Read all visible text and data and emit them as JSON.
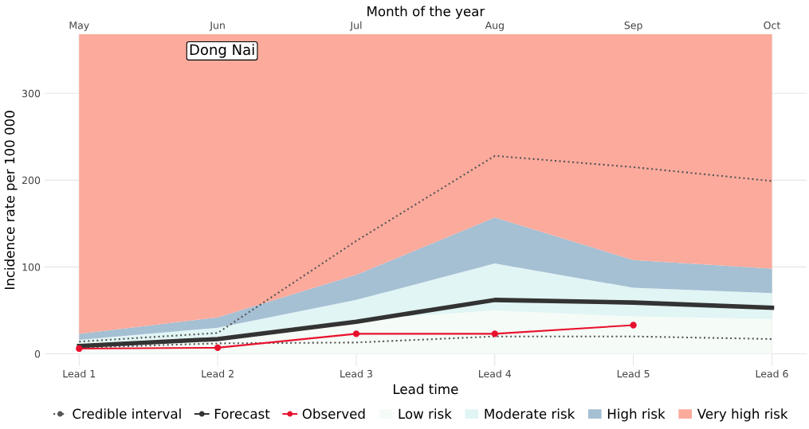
{
  "chart_data": {
    "type": "line",
    "xlabel": "Lead time",
    "ylabel": "Incidence rate per 100 000",
    "x2label": "Month of the year",
    "categories": [
      "Lead 1",
      "Lead 2",
      "Lead 3",
      "Lead 4",
      "Lead 5",
      "Lead 6"
    ],
    "ylim": [
      -14,
      368
    ],
    "yticks": [
      0,
      100,
      200,
      300
    ],
    "grid": true,
    "legend": "bottom",
    "stacked": true,
    "annotations": [
      "Dong Nai",
      "May",
      "Jun",
      "Jul",
      "Aug",
      "Sep",
      "Oct"
    ],
    "series": [
      {
        "name": "Low risk",
        "type": "area",
        "color": "#f5fbf6",
        "values": [
          12,
          20,
          39,
          50,
          43,
          40
        ]
      },
      {
        "name": "Moderate risk",
        "type": "area",
        "color": "#e0f5f4",
        "values": [
          4,
          10,
          23,
          54,
          33,
          30
        ]
      },
      {
        "name": "High risk",
        "type": "area",
        "color": "#a5bfd3",
        "values": [
          7,
          12,
          29,
          53,
          32,
          28
        ]
      },
      {
        "name": "Very high risk",
        "type": "area",
        "color": "#fbaa9c",
        "values": [
          345,
          326,
          277,
          211,
          260,
          270
        ]
      },
      {
        "name": "Credible interval",
        "color": "#555555",
        "line_style": "dotted",
        "marker": "none",
        "values": [
          14,
          24,
          130,
          228,
          215,
          199
        ]
      },
      {
        "color": "#555555",
        "line_style": "dotted",
        "marker": "none",
        "values": [
          7,
          12,
          13,
          20,
          20,
          17
        ]
      },
      {
        "name": "Forecast",
        "color": "#333333",
        "line_style": "solid",
        "marker": "none",
        "values": [
          9,
          17,
          37,
          62,
          59,
          53
        ]
      },
      {
        "name": "Observed",
        "color": "#e8112d",
        "line_style": "solid",
        "marker": "circle",
        "values": [
          6,
          7,
          23,
          23,
          33,
          null
        ]
      }
    ]
  }
}
